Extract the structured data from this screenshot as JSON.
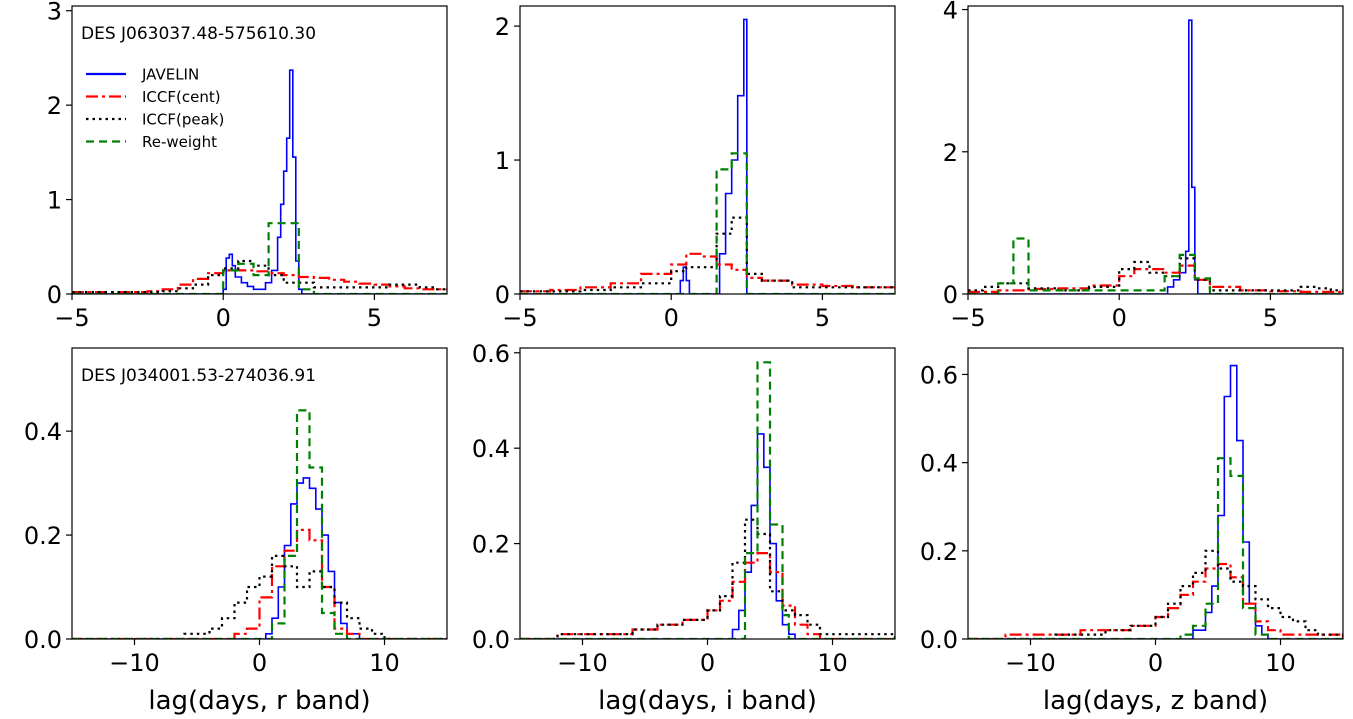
{
  "legend": {
    "entries": [
      {
        "label": "JAVELIN",
        "color": "#0000ff",
        "dash": "solid"
      },
      {
        "label": "ICCF(cent)",
        "color": "#ff0000",
        "dash": "dashdot"
      },
      {
        "label": "ICCF(peak)",
        "color": "#000000",
        "dash": "dotted"
      },
      {
        "label": "Re-weight",
        "color": "#008000",
        "dash": "dashed"
      }
    ]
  },
  "chart_data": [
    {
      "type": "line",
      "title": "",
      "annotation": "DES J063037.48-575610.30",
      "show_legend": true,
      "xlabel": "",
      "ylabel": "",
      "xlim": [
        -5,
        7.4
      ],
      "ylim": [
        0,
        3.05
      ],
      "xticks": [
        -5,
        0,
        5
      ],
      "yticks": [
        0,
        1,
        2,
        3
      ],
      "series": [
        {
          "name": "JAVELIN",
          "x": [
            -5,
            -1.0,
            0.0,
            0.1,
            0.2,
            0.3,
            0.4,
            0.6,
            0.8,
            1.0,
            1.2,
            1.4,
            1.6,
            1.8,
            1.9,
            2.0,
            2.1,
            2.2,
            2.3,
            2.4,
            2.5,
            2.6,
            7.4
          ],
          "y": [
            0,
            0,
            0.05,
            0.38,
            0.42,
            0.3,
            0.18,
            0.12,
            0.08,
            0.05,
            0.05,
            0.12,
            0.25,
            0.6,
            0.95,
            1.3,
            1.65,
            2.37,
            1.45,
            0.35,
            0.05,
            0,
            0
          ]
        },
        {
          "name": "ICCF(cent)",
          "x": [
            -5,
            -2.5,
            -2.0,
            -1.5,
            -1.0,
            -0.5,
            0.0,
            0.5,
            1.0,
            1.5,
            2.0,
            2.5,
            3.0,
            3.5,
            4.0,
            4.5,
            5.0,
            5.5,
            6.0,
            6.5,
            7.4
          ],
          "y": [
            0.02,
            0.03,
            0.05,
            0.1,
            0.16,
            0.22,
            0.25,
            0.25,
            0.24,
            0.22,
            0.2,
            0.18,
            0.17,
            0.15,
            0.13,
            0.11,
            0.1,
            0.08,
            0.06,
            0.05,
            0.05
          ]
        },
        {
          "name": "ICCF(peak)",
          "x": [
            -5,
            -2.0,
            -1.5,
            -1.0,
            -0.5,
            0.0,
            0.5,
            1.0,
            1.5,
            2.0,
            2.5,
            3.0,
            3.5,
            4.0,
            5.0,
            5.5,
            6.0,
            6.5,
            7.0
          ],
          "y": [
            0.02,
            0.03,
            0.06,
            0.1,
            0.2,
            0.27,
            0.35,
            0.3,
            0.2,
            0.12,
            0.12,
            0.07,
            0.07,
            0.07,
            0.07,
            0.1,
            0.1,
            0.07,
            0.05
          ]
        },
        {
          "name": "Re-weight",
          "x": [
            -5,
            -0.5,
            0.0,
            0.5,
            1.0,
            1.5,
            2.5,
            3.0,
            7.4
          ],
          "y": [
            0,
            0,
            0.25,
            0.32,
            0.2,
            0.75,
            0.05,
            0,
            0
          ]
        }
      ]
    },
    {
      "type": "line",
      "title": "",
      "annotation": "",
      "show_legend": false,
      "xlabel": "",
      "ylabel": "",
      "xlim": [
        -5,
        7.4
      ],
      "ylim": [
        0,
        2.15
      ],
      "xticks": [
        -5,
        0,
        5
      ],
      "yticks": [
        0,
        1,
        2
      ],
      "series": [
        {
          "name": "JAVELIN",
          "x": [
            -5,
            0.2,
            0.3,
            0.4,
            0.5,
            0.6,
            1.5,
            1.6,
            1.8,
            2.0,
            2.2,
            2.4,
            2.5,
            7.4
          ],
          "y": [
            0,
            0,
            0.1,
            0.2,
            0.1,
            0,
            0,
            0.3,
            0.75,
            1.0,
            1.48,
            2.05,
            0,
            0
          ]
        },
        {
          "name": "ICCF(cent)",
          "x": [
            -5,
            -4.0,
            -3.0,
            -2.0,
            -1.0,
            0.0,
            0.5,
            1.0,
            1.5,
            2.0,
            2.5,
            3.0,
            4.0,
            5.0,
            6.0,
            7.4
          ],
          "y": [
            0.02,
            0.03,
            0.05,
            0.08,
            0.15,
            0.22,
            0.3,
            0.28,
            0.22,
            0.18,
            0.12,
            0.1,
            0.07,
            0.06,
            0.05,
            0.05
          ]
        },
        {
          "name": "ICCF(peak)",
          "x": [
            -5,
            -3.0,
            -2.0,
            -1.0,
            0.0,
            0.5,
            1.0,
            1.5,
            2.0,
            2.5,
            3.0,
            4.0,
            5.0,
            6.0,
            7.0
          ],
          "y": [
            0.02,
            0.03,
            0.05,
            0.08,
            0.17,
            0.2,
            0.2,
            0.45,
            0.57,
            0.15,
            0.1,
            0.05,
            0.05,
            0.05,
            0.05
          ]
        },
        {
          "name": "Re-weight",
          "x": [
            -5,
            1.0,
            1.5,
            2.0,
            2.5,
            3.0,
            7.4
          ],
          "y": [
            0,
            0,
            0.93,
            1.05,
            0,
            0,
            0
          ]
        }
      ]
    },
    {
      "type": "line",
      "title": "",
      "annotation": "",
      "show_legend": false,
      "xlabel": "",
      "ylabel": "",
      "xlim": [
        -5,
        7.4
      ],
      "ylim": [
        0,
        4.05
      ],
      "xticks": [
        -5,
        0,
        5
      ],
      "yticks": [
        0,
        2,
        4
      ],
      "series": [
        {
          "name": "JAVELIN",
          "x": [
            -5,
            1.4,
            1.6,
            1.8,
            2.0,
            2.2,
            2.3,
            2.4,
            2.5,
            2.6,
            7.4
          ],
          "y": [
            0,
            0,
            0.1,
            0.2,
            0.3,
            0.6,
            3.85,
            1.5,
            0.2,
            0,
            0
          ]
        },
        {
          "name": "ICCF(cent)",
          "x": [
            -5,
            -4.0,
            -3.0,
            -2.0,
            -1.0,
            0.0,
            0.5,
            1.0,
            1.5,
            2.0,
            2.5,
            3.0,
            4.0,
            5.0,
            6.0,
            7.4
          ],
          "y": [
            0.03,
            0.05,
            0.07,
            0.08,
            0.12,
            0.25,
            0.35,
            0.35,
            0.3,
            0.4,
            0.2,
            0.1,
            0.05,
            0.04,
            0.03,
            0.03
          ]
        },
        {
          "name": "ICCF(peak)",
          "x": [
            -5,
            -4.5,
            -4.0,
            -3.0,
            -2.0,
            -1.0,
            0.0,
            0.5,
            1.0,
            1.5,
            2.0,
            2.5,
            3.0,
            4.0,
            5.0,
            6.0,
            6.5,
            7.0
          ],
          "y": [
            0.05,
            0.1,
            0.15,
            0.08,
            0.05,
            0.1,
            0.35,
            0.45,
            0.3,
            0.25,
            0.5,
            0.2,
            0.05,
            0.05,
            0.05,
            0.1,
            0.08,
            0.05
          ]
        },
        {
          "name": "Re-weight",
          "x": [
            -5,
            -4.0,
            -3.5,
            -3.0,
            1.5,
            2.0,
            2.5,
            3.0,
            7.4
          ],
          "y": [
            0,
            0.15,
            0.78,
            0.05,
            0.25,
            0.55,
            0.22,
            0,
            0
          ]
        }
      ]
    },
    {
      "type": "line",
      "title": "",
      "annotation": "DES J034001.53-274036.91",
      "show_legend": false,
      "xlabel": "lag(days, r band)",
      "ylabel": "",
      "xlim": [
        -15,
        15
      ],
      "ylim": [
        0,
        0.56
      ],
      "xticks": [
        -10,
        0,
        10
      ],
      "yticks": [
        0.0,
        0.2,
        0.4
      ],
      "series": [
        {
          "name": "JAVELIN",
          "x": [
            -15,
            0.0,
            0.5,
            1.0,
            1.5,
            2.0,
            2.5,
            3.0,
            3.5,
            4.0,
            4.5,
            5.0,
            5.5,
            6.0,
            6.5,
            7.0,
            8.0,
            15
          ],
          "y": [
            0,
            0,
            0.01,
            0.04,
            0.1,
            0.18,
            0.26,
            0.3,
            0.31,
            0.29,
            0.25,
            0.2,
            0.13,
            0.07,
            0.03,
            0.01,
            0,
            0
          ]
        },
        {
          "name": "ICCF(cent)",
          "x": [
            -15,
            -3.0,
            -2.0,
            -1.0,
            0.0,
            1.0,
            2.0,
            3.0,
            4.0,
            5.0,
            6.0,
            7.0,
            8.0,
            15
          ],
          "y": [
            0,
            0,
            0.01,
            0.02,
            0.08,
            0.14,
            0.17,
            0.21,
            0.19,
            0.1,
            0.02,
            0.01,
            0,
            0
          ]
        },
        {
          "name": "ICCF(peak)",
          "x": [
            -15,
            -6.0,
            -5.0,
            -4.0,
            -3.0,
            -2.0,
            -1.0,
            0.0,
            1.0,
            2.0,
            3.0,
            4.0,
            5.0,
            6.0,
            7.0,
            8.0,
            9.0,
            10.0,
            15
          ],
          "y": [
            0,
            0.01,
            0.01,
            0.02,
            0.04,
            0.07,
            0.1,
            0.12,
            0.16,
            0.14,
            0.1,
            0.13,
            0.1,
            0.07,
            0.04,
            0.02,
            0.01,
            0,
            0
          ]
        },
        {
          "name": "Re-weight",
          "x": [
            -15,
            0.0,
            1.0,
            2.0,
            3.0,
            4.0,
            5.0,
            6.0,
            7.0,
            15
          ],
          "y": [
            0,
            0,
            0.03,
            0.16,
            0.44,
            0.33,
            0.05,
            0.01,
            0,
            0
          ]
        }
      ]
    },
    {
      "type": "line",
      "title": "",
      "annotation": "",
      "show_legend": false,
      "xlabel": "lag(days, i band)",
      "ylabel": "",
      "xlim": [
        -15,
        15
      ],
      "ylim": [
        0,
        0.61
      ],
      "xticks": [
        -10,
        0,
        10
      ],
      "yticks": [
        0.0,
        0.2,
        0.4,
        0.6
      ],
      "series": [
        {
          "name": "JAVELIN",
          "x": [
            -15,
            1.5,
            2.0,
            2.5,
            3.0,
            3.5,
            4.0,
            4.5,
            5.0,
            5.5,
            6.0,
            6.5,
            7.0,
            15
          ],
          "y": [
            0,
            0,
            0.02,
            0.06,
            0.14,
            0.28,
            0.43,
            0.36,
            0.2,
            0.08,
            0.03,
            0.01,
            0,
            0
          ]
        },
        {
          "name": "ICCF(cent)",
          "x": [
            -15,
            -12.0,
            -10.0,
            -8.0,
            -6.0,
            -4.0,
            -2.0,
            0.0,
            1.0,
            2.0,
            3.0,
            4.0,
            5.0,
            6.0,
            7.0,
            8.0,
            9.0,
            15
          ],
          "y": [
            0,
            0.01,
            0.01,
            0.01,
            0.02,
            0.03,
            0.04,
            0.06,
            0.08,
            0.12,
            0.16,
            0.18,
            0.14,
            0.07,
            0.03,
            0.01,
            0,
            0
          ]
        },
        {
          "name": "ICCF(peak)",
          "x": [
            -15,
            -12.0,
            -10.0,
            -8.0,
            -6.0,
            -4.0,
            -2.0,
            0.0,
            1.0,
            2.0,
            3.0,
            4.0,
            5.0,
            6.0,
            7.0,
            8.0,
            9.0,
            15
          ],
          "y": [
            0,
            0.01,
            0.01,
            0.01,
            0.02,
            0.03,
            0.04,
            0.06,
            0.09,
            0.16,
            0.25,
            0.22,
            0.1,
            0.06,
            0.05,
            0.03,
            0.01,
            0
          ]
        },
        {
          "name": "Re-weight",
          "x": [
            -15,
            2.5,
            3.0,
            4.0,
            5.0,
            6.0,
            6.5,
            15
          ],
          "y": [
            0,
            0,
            0.18,
            0.58,
            0.24,
            0.05,
            0,
            0
          ]
        }
      ]
    },
    {
      "type": "line",
      "title": "",
      "annotation": "",
      "show_legend": false,
      "xlabel": "lag(days, z band)",
      "ylabel": "",
      "xlim": [
        -15,
        15
      ],
      "ylim": [
        0,
        0.66
      ],
      "xticks": [
        -10,
        0,
        10
      ],
      "yticks": [
        0.0,
        0.2,
        0.4,
        0.6
      ],
      "series": [
        {
          "name": "JAVELIN",
          "x": [
            -15,
            2.0,
            3.0,
            4.0,
            4.5,
            5.0,
            5.5,
            6.0,
            6.5,
            7.0,
            7.5,
            8.0,
            8.5,
            9.0,
            15
          ],
          "y": [
            0,
            0,
            0.02,
            0.06,
            0.12,
            0.28,
            0.55,
            0.62,
            0.45,
            0.22,
            0.08,
            0.03,
            0.01,
            0,
            0
          ]
        },
        {
          "name": "ICCF(cent)",
          "x": [
            -15,
            -12.0,
            -10.0,
            -8.0,
            -6.0,
            -4.0,
            -2.0,
            0.0,
            1.0,
            2.0,
            3.0,
            4.0,
            5.0,
            6.0,
            7.0,
            8.0,
            9.0,
            10.0,
            15
          ],
          "y": [
            0,
            0.01,
            0.01,
            0.01,
            0.02,
            0.02,
            0.03,
            0.05,
            0.07,
            0.1,
            0.13,
            0.16,
            0.17,
            0.14,
            0.08,
            0.04,
            0.02,
            0.01,
            0
          ]
        },
        {
          "name": "ICCF(peak)",
          "x": [
            -15,
            -8.0,
            -6.0,
            -4.0,
            -2.0,
            0.0,
            1.0,
            2.0,
            3.0,
            4.0,
            5.0,
            6.0,
            7.0,
            8.0,
            9.0,
            10.0,
            11.0,
            12.0,
            13.0,
            15
          ],
          "y": [
            0,
            0.01,
            0.01,
            0.02,
            0.03,
            0.05,
            0.08,
            0.12,
            0.15,
            0.2,
            0.16,
            0.13,
            0.12,
            0.09,
            0.07,
            0.05,
            0.04,
            0.02,
            0.01,
            0
          ]
        },
        {
          "name": "Re-weight",
          "x": [
            -15,
            1.0,
            2.0,
            3.0,
            4.0,
            5.0,
            6.0,
            7.0,
            8.0,
            9.0,
            15
          ],
          "y": [
            0,
            0,
            0.01,
            0.03,
            0.08,
            0.41,
            0.37,
            0.07,
            0.01,
            0,
            0
          ]
        }
      ]
    }
  ]
}
